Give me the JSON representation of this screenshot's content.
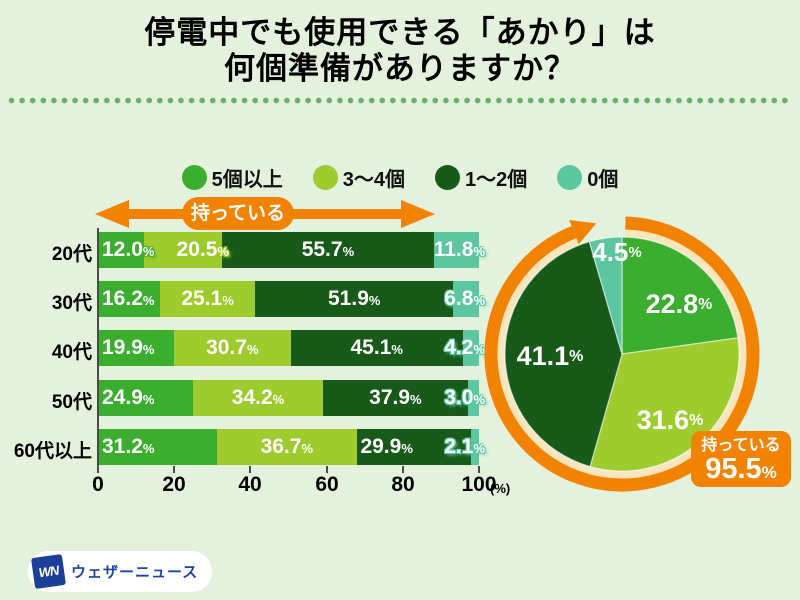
{
  "title": {
    "line1": "停電中でも使用できる「あかり」は",
    "line2": "何個準備がありますか？"
  },
  "colors": {
    "background": "#E4F1DC",
    "divider_dot": "#69B169",
    "accent_orange": "#F28300",
    "ring_cream": "#FAE5BC",
    "axis": "#4B4B4B",
    "label_text": "#FFFFFF",
    "logo_blue": "#1C3F97"
  },
  "legend": {
    "items": [
      {
        "label": "5個以上",
        "color": "#3CAE2F"
      },
      {
        "label": "3〜4個",
        "color": "#9ECB2D"
      },
      {
        "label": "1〜2個",
        "color": "#185A1A"
      },
      {
        "label": "0個",
        "color": "#5CC6A0"
      }
    ]
  },
  "annotations": {
    "have_arrow_label": "持っている",
    "have_total_label": "持っている",
    "have_total_value": "95.5",
    "percent_sign": "%",
    "axis_unit": "(%)"
  },
  "chart_data": [
    {
      "type": "bar",
      "orientation": "horizontal-stacked",
      "categories": [
        "20代",
        "30代",
        "40代",
        "50代",
        "60代以上"
      ],
      "series": [
        {
          "name": "5個以上",
          "color": "#3CAE2F",
          "values": [
            12.0,
            16.2,
            19.9,
            24.9,
            31.2
          ]
        },
        {
          "name": "3〜4個",
          "color": "#9ECB2D",
          "values": [
            20.5,
            25.1,
            30.7,
            34.2,
            36.7
          ]
        },
        {
          "name": "1〜2個",
          "color": "#185A1A",
          "values": [
            55.7,
            51.9,
            45.1,
            37.9,
            29.9
          ]
        },
        {
          "name": "0個",
          "color": "#5CC6A0",
          "values": [
            11.8,
            6.8,
            4.2,
            3.0,
            2.1
          ]
        }
      ],
      "x_ticks": [
        "0",
        "20",
        "40",
        "60",
        "80",
        "100"
      ],
      "xlim": [
        0,
        100
      ],
      "unit": "(%)",
      "grid": false
    },
    {
      "type": "pie",
      "start_angle_deg": 0,
      "direction": "clockwise",
      "slices": [
        {
          "label": "5個以上",
          "value": 22.8,
          "color": "#3CAE2F"
        },
        {
          "label": "3〜4個",
          "value": 31.6,
          "color": "#9ECB2D"
        },
        {
          "label": "1〜2個",
          "value": 41.1,
          "color": "#185A1A"
        },
        {
          "label": "0個",
          "value": 4.5,
          "color": "#5CC6A0"
        }
      ],
      "highlight_arc": {
        "label": "持っている",
        "value": 95.5,
        "color": "#F28300"
      }
    }
  ],
  "logo": {
    "mark": "WN",
    "text": "ウェザーニュース"
  }
}
